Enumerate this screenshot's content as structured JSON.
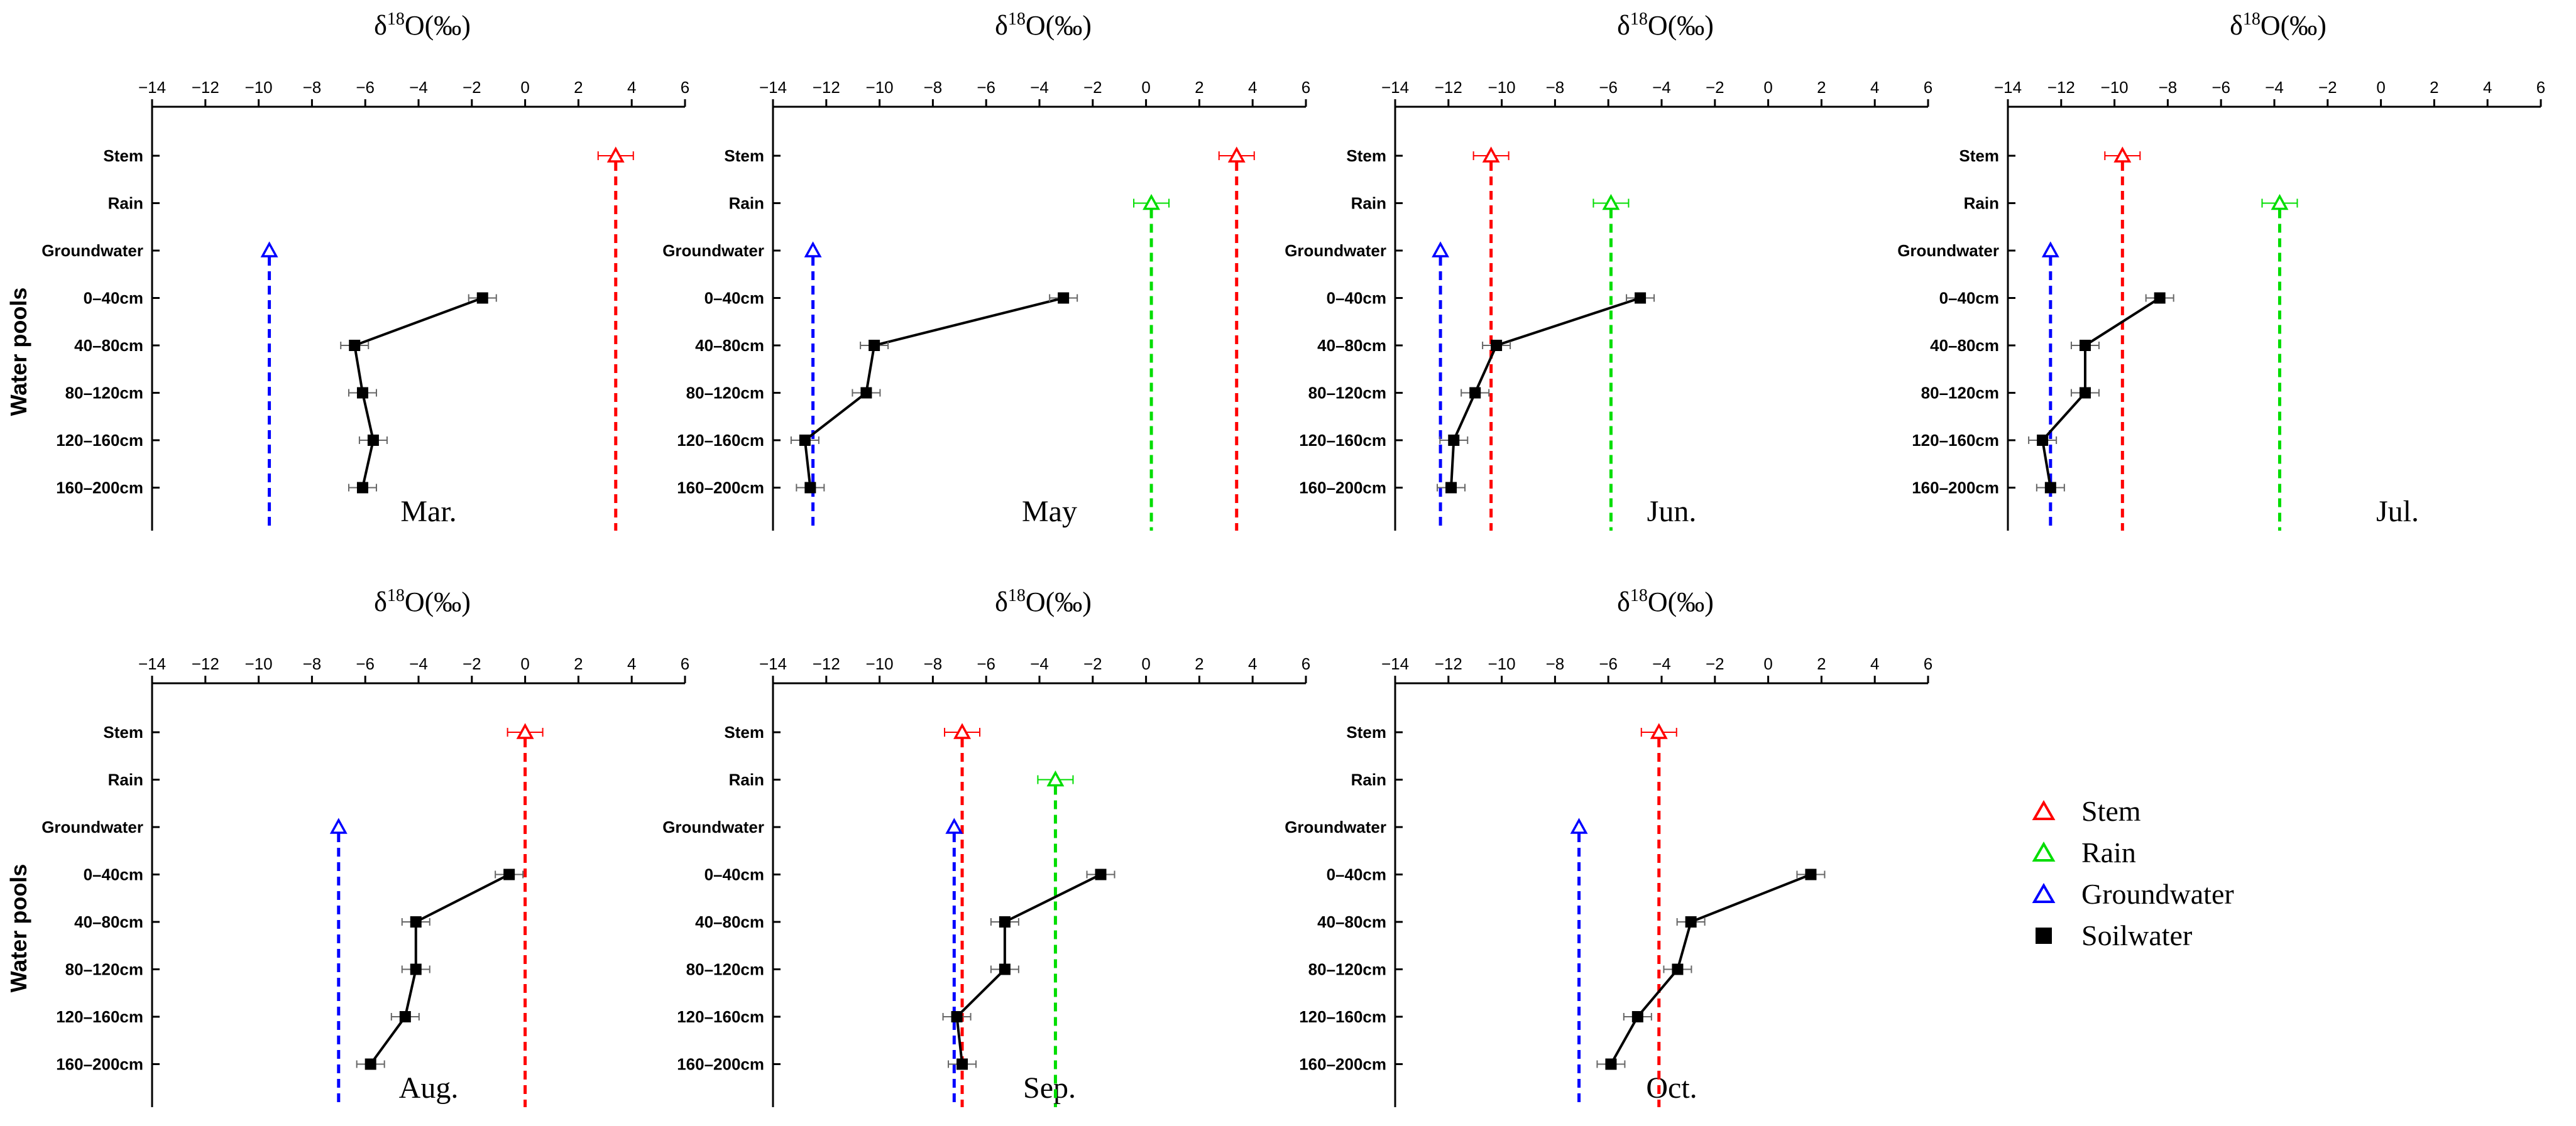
{
  "figure": {
    "y_axis_title": "Water pools",
    "y_categories": [
      "Stem",
      "Rain",
      "Groundwater",
      "0–40cm",
      "40–80cm",
      "80–120cm",
      "120–160cm",
      "160–200cm"
    ],
    "colors": {
      "Stem": "#ff0000",
      "Rain": "#00dd00",
      "Groundwater": "#0000ff",
      "Soilwater": "#000000"
    }
  },
  "legend": {
    "items": [
      {
        "name": "Stem",
        "symbol": "triangle",
        "color": "#ff0000"
      },
      {
        "name": "Rain",
        "symbol": "triangle",
        "color": "#00dd00"
      },
      {
        "name": "Groundwater",
        "symbol": "triangle",
        "color": "#0000ff"
      },
      {
        "name": "Soilwater",
        "symbol": "square",
        "color": "#000000"
      }
    ]
  },
  "chart_data": [
    {
      "type": "scatter",
      "month": "Mar.",
      "xlabel": "δ18O(‰)",
      "xlim": [
        -14,
        6
      ],
      "xticks": [
        -14,
        -12,
        -10,
        -8,
        -6,
        -4,
        -2,
        0,
        2,
        4,
        6
      ],
      "stem": 3.4,
      "rain": null,
      "groundwater": -9.6,
      "soilwater": [
        -1.6,
        -6.4,
        -6.1,
        -5.7,
        -6.1
      ]
    },
    {
      "type": "scatter",
      "month": "May",
      "xlabel": "δ18O(‰)",
      "xlim": [
        -14,
        6
      ],
      "xticks": [
        -14,
        -12,
        -10,
        -8,
        -6,
        -4,
        -2,
        0,
        2,
        4,
        6
      ],
      "stem": 3.4,
      "rain": 0.2,
      "groundwater": -12.5,
      "soilwater": [
        -3.1,
        -10.2,
        -10.5,
        -12.8,
        -12.6
      ]
    },
    {
      "type": "scatter",
      "month": "Jun.",
      "xlabel": "δ18O(‰)",
      "xlim": [
        -14,
        6
      ],
      "xticks": [
        -14,
        -12,
        -10,
        -8,
        -6,
        -4,
        -2,
        0,
        2,
        4,
        6
      ],
      "stem": -10.4,
      "rain": -5.9,
      "groundwater": -12.3,
      "soilwater": [
        -4.8,
        -10.2,
        -11.0,
        -11.8,
        -11.9
      ]
    },
    {
      "type": "scatter",
      "month": "Jul.",
      "xlabel": "δ18O(‰)",
      "xlim": [
        -14,
        6
      ],
      "xticks": [
        -14,
        -12,
        -10,
        -8,
        -6,
        -4,
        -2,
        0,
        2,
        4,
        6
      ],
      "stem": -9.7,
      "rain": -3.8,
      "groundwater": -12.4,
      "soilwater": [
        -8.3,
        -11.1,
        -11.1,
        -12.7,
        -12.4
      ]
    },
    {
      "type": "scatter",
      "month": "Aug.",
      "xlabel": "δ18O(‰)",
      "xlim": [
        -14,
        6
      ],
      "xticks": [
        -14,
        -12,
        -10,
        -8,
        -6,
        -4,
        -2,
        0,
        2,
        4,
        6
      ],
      "stem": 0.0,
      "rain": null,
      "groundwater": -7.0,
      "soilwater": [
        -0.6,
        -4.1,
        -4.1,
        -4.5,
        -5.8
      ]
    },
    {
      "type": "scatter",
      "month": "Sep.",
      "xlabel": "δ18O(‰)",
      "xlim": [
        -14,
        6
      ],
      "xticks": [
        -14,
        -12,
        -10,
        -8,
        -6,
        -4,
        -2,
        0,
        2,
        4,
        6
      ],
      "stem": -6.9,
      "rain": -3.4,
      "groundwater": -7.2,
      "soilwater": [
        -1.7,
        -5.3,
        -5.3,
        -7.1,
        -6.9
      ]
    },
    {
      "type": "scatter",
      "month": "Oct.",
      "xlabel": "δ18O(‰)",
      "xlim": [
        -14,
        6
      ],
      "xticks": [
        -14,
        -12,
        -10,
        -8,
        -6,
        -4,
        -2,
        0,
        2,
        4,
        6
      ],
      "stem": -4.1,
      "rain": null,
      "groundwater": -7.1,
      "soilwater": [
        1.6,
        -2.9,
        -3.4,
        -4.9,
        -5.9
      ]
    }
  ]
}
